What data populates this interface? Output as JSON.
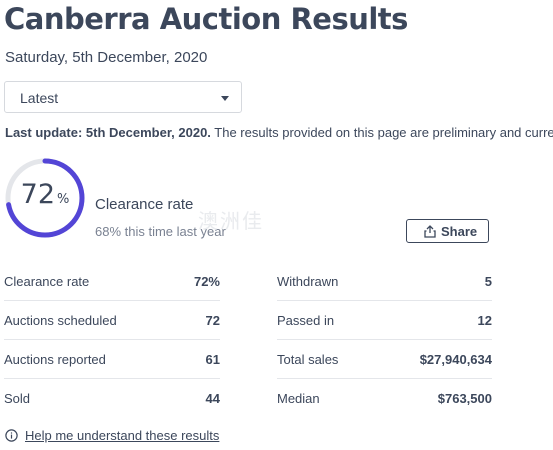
{
  "page": {
    "title": "Canberra Auction Results",
    "date": "Saturday, 5th December, 2020"
  },
  "filter": {
    "selected": "Latest"
  },
  "update": {
    "label": "Last update: 5th December, 2020.",
    "text": " The results provided on this page are preliminary and current"
  },
  "gauge": {
    "value": "72",
    "unit": "%",
    "fraction": 0.72,
    "label": "Clearance rate",
    "sub": "68% this time last year",
    "color": "#5345d6",
    "track_color": "#e4e6ea"
  },
  "watermark": "澳洲佳",
  "share": {
    "label": "Share",
    "icon": "share-icon"
  },
  "stats": {
    "left": [
      {
        "key": "Clearance rate",
        "value": "72%"
      },
      {
        "key": "Auctions scheduled",
        "value": "72"
      },
      {
        "key": "Auctions reported",
        "value": "61"
      },
      {
        "key": "Sold",
        "value": "44"
      }
    ],
    "right": [
      {
        "key": "Withdrawn",
        "value": "5"
      },
      {
        "key": "Passed in",
        "value": "12"
      },
      {
        "key": "Total sales",
        "value": "$27,940,634"
      },
      {
        "key": "Median",
        "value": "$763,500"
      }
    ]
  },
  "help": {
    "label": "Help me understand these results",
    "icon": "info-icon"
  }
}
